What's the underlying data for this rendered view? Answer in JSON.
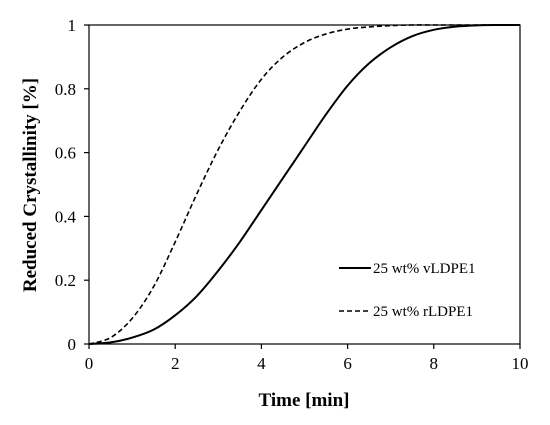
{
  "chart_data": {
    "type": "line",
    "title": "",
    "xlabel": "Time [min]",
    "ylabel": "Reduced Crystallinity [%]",
    "xlim": [
      0,
      10
    ],
    "ylim": [
      0,
      1
    ],
    "x_ticks": [
      "0",
      "2",
      "4",
      "6",
      "8",
      "10"
    ],
    "y_ticks": [
      "0",
      "0.2",
      "0.4",
      "0.6",
      "0.8",
      "1"
    ],
    "grid": false,
    "legend_position": "bottom-right",
    "series": [
      {
        "name": "25 wt% vLDPE1",
        "line_style": "solid",
        "color": "#000000",
        "x": [
          0,
          0.5,
          1,
          1.5,
          2,
          2.5,
          3,
          3.5,
          4,
          4.5,
          5,
          5.5,
          6,
          6.5,
          7,
          7.5,
          8,
          8.5,
          9,
          9.5,
          10
        ],
        "y": [
          0,
          0.005,
          0.02,
          0.045,
          0.09,
          0.15,
          0.23,
          0.32,
          0.42,
          0.52,
          0.62,
          0.72,
          0.81,
          0.88,
          0.93,
          0.965,
          0.985,
          0.995,
          0.999,
          1.0,
          1.0
        ]
      },
      {
        "name": "25 wt% rLDPE1",
        "line_style": "dashed",
        "color": "#000000",
        "x": [
          0,
          0.5,
          1,
          1.5,
          2,
          2.5,
          3,
          3.5,
          4,
          4.5,
          5,
          5.5,
          6,
          6.5,
          7,
          7.5,
          8,
          8.5,
          9,
          9.5,
          10
        ],
        "y": [
          0,
          0.02,
          0.08,
          0.18,
          0.32,
          0.47,
          0.61,
          0.73,
          0.83,
          0.9,
          0.945,
          0.972,
          0.987,
          0.994,
          0.998,
          1.0,
          1.0,
          1.0,
          1.0,
          1.0,
          1.0
        ]
      }
    ]
  }
}
